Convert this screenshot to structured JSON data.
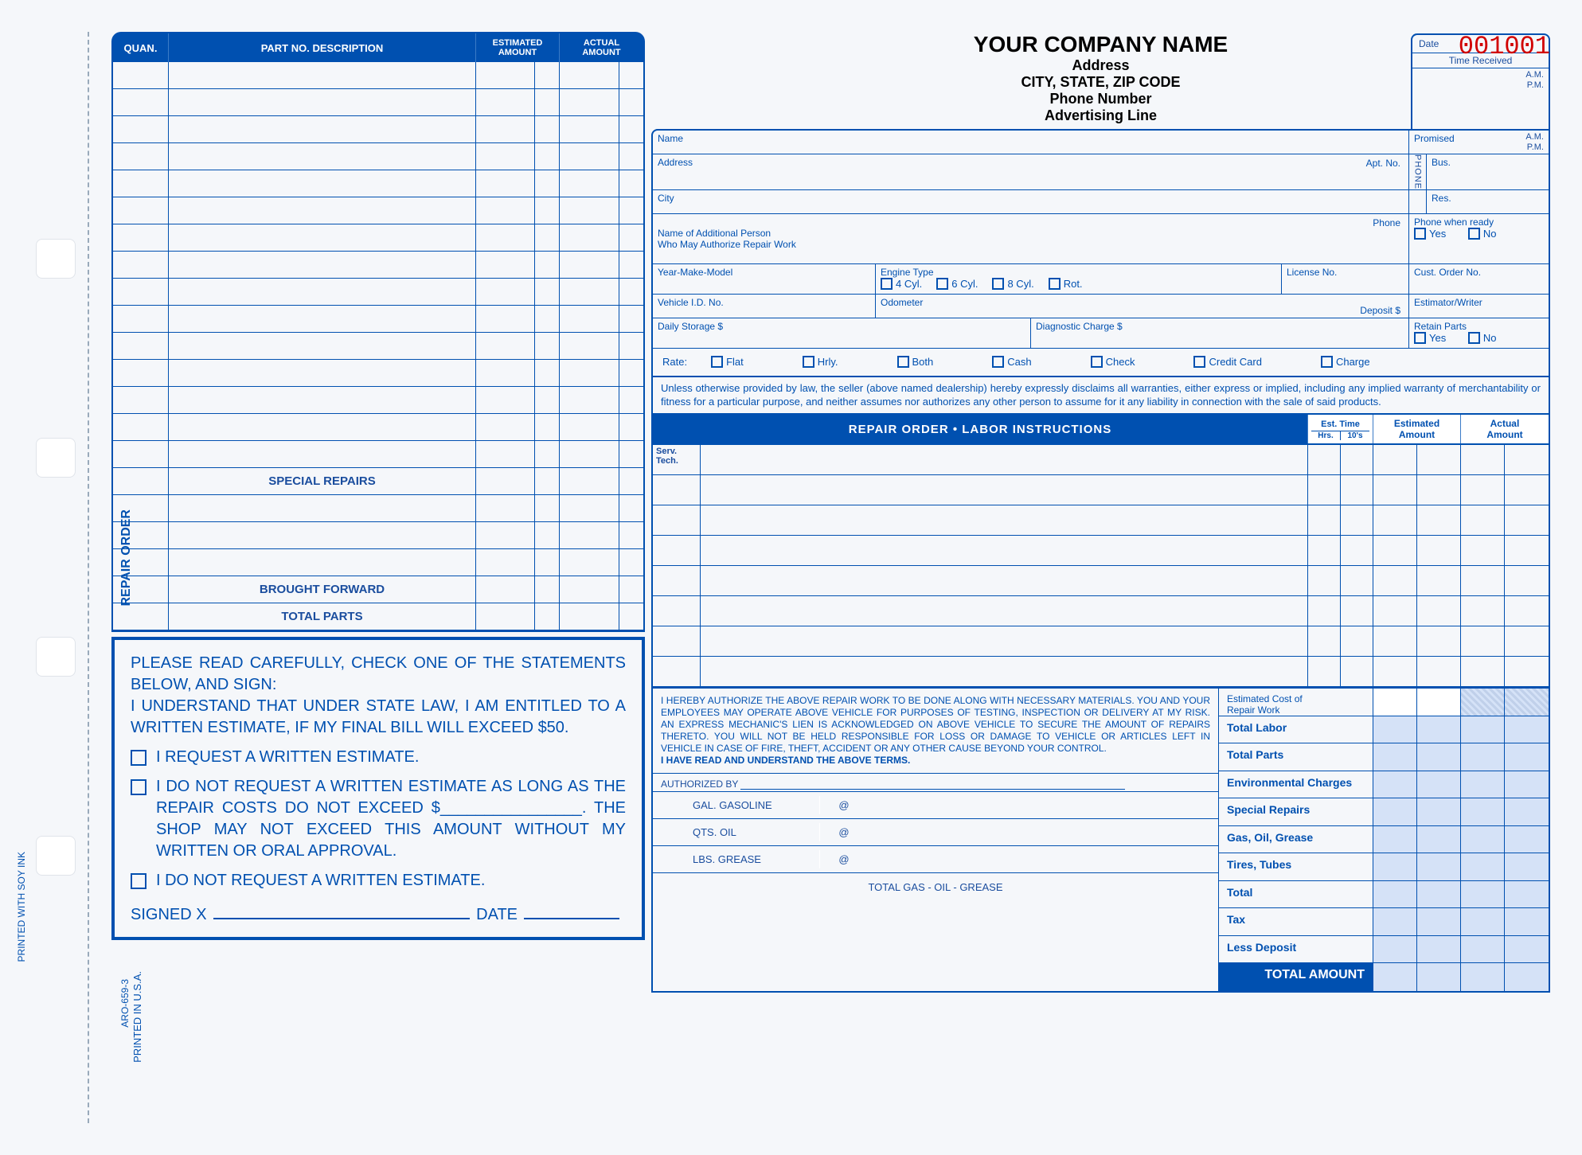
{
  "form_number": "001001",
  "company": {
    "name": "YOUR COMPANY NAME",
    "address": "Address",
    "city_state_zip": "CITY, STATE, ZIP CODE",
    "phone": "Phone Number",
    "advertising": "Advertising Line"
  },
  "colors": {
    "primary": "#0050b0",
    "accent_fill": "#d5e2f7",
    "form_number": "#d10000",
    "background": "#f5f7fa"
  },
  "side_labels": {
    "repair_order": "REPAIR ORDER",
    "soy_ink": "PRINTED WITH SOY INK",
    "form_code": "ARO-659-3",
    "printed_usa": "PRINTED IN U.S.A."
  },
  "parts_table": {
    "headers": {
      "quan": "QUAN.",
      "desc": "PART NO. DESCRIPTION",
      "est": "ESTIMATED\nAMOUNT",
      "act": "ACTUAL\nAMOUNT"
    },
    "blank_rows": 15,
    "special_repairs": "SPECIAL  REPAIRS",
    "blank_rows_after": 3,
    "brought_forward": "BROUGHT FORWARD",
    "total_parts": "TOTAL PARTS"
  },
  "statement": {
    "lead": "PLEASE READ CAREFULLY, CHECK ONE OF THE STATEMENTS BELOW, AND SIGN:",
    "body": "I UNDERSTAND THAT UNDER STATE LAW, I AM ENTITLED TO A WRITTEN ESTIMATE, IF MY FINAL BILL WILL EXCEED $50.",
    "opt1": "I REQUEST A WRITTEN ESTIMATE.",
    "opt2": "I DO NOT REQUEST A WRITTEN ESTIMATE AS LONG AS THE REPAIR COSTS DO NOT EXCEED $________________. THE SHOP MAY NOT EXCEED THIS AMOUNT WITHOUT MY WRITTEN OR ORAL APPROVAL.",
    "opt3": "I DO NOT REQUEST A WRITTEN ESTIMATE.",
    "signed": "SIGNED  X",
    "date": "DATE"
  },
  "customer_info": {
    "date": "Date",
    "time_received": "Time Received",
    "am": "A.M.",
    "pm": "P.M.",
    "name": "Name",
    "promised": "Promised",
    "address": "Address",
    "apt": "Apt. No.",
    "phone_label": "PHONE",
    "bus": "Bus.",
    "res": "Res.",
    "city": "City",
    "additional_person": "Name of Additional Person\nWho May Authorize Repair Work",
    "phone": "Phone",
    "phone_when_ready": "Phone when ready",
    "yes": "Yes",
    "no": "No",
    "year_make_model": "Year-Make-Model",
    "engine_type": "Engine Type",
    "engine_opts": [
      "4 Cyl.",
      "6 Cyl.",
      "8 Cyl.",
      "Rot."
    ],
    "license_no": "License No.",
    "cust_order_no": "Cust. Order No.",
    "vehicle_id": "Vehicle I.D. No.",
    "odometer": "Odometer",
    "deposit": "Deposit $",
    "estimator": "Estimator/Writer",
    "daily_storage": "Daily Storage $",
    "diagnostic_charge": "Diagnostic Charge $",
    "retain_parts": "Retain Parts",
    "rate": "Rate:",
    "rate_opts": [
      "Flat",
      "Hrly.",
      "Both",
      "Cash",
      "Check",
      "Credit Card",
      "Charge"
    ]
  },
  "disclaimer": "Unless otherwise provided by law, the seller (above named dealership) hereby expressly disclaims all warranties, either express or implied, including any implied warranty of merchantability or fitness for a particular purpose, and neither assumes nor authorizes any other person to assume for it any liability in connection with the sale of said products.",
  "labor": {
    "title": "REPAIR ORDER   •   LABOR INSTRUCTIONS",
    "est_time": "Est. Time",
    "hrs": "Hrs.",
    "tens": "10's",
    "est_amount": "Estimated\nAmount",
    "act_amount": "Actual\nAmount",
    "serv_tech": "Serv.\nTech.",
    "rows": 8
  },
  "authorization": {
    "text": "I HEREBY AUTHORIZE THE ABOVE REPAIR WORK TO BE DONE ALONG WITH NECESSARY MATERIALS. YOU AND YOUR EMPLOYEES MAY OPERATE ABOVE VEHICLE FOR PURPOSES OF TESTING, INSPECTION OR DELIVERY AT MY RISK. AN EXPRESS MECHANIC'S LIEN IS ACKNOWLEDGED ON ABOVE VEHICLE TO SECURE THE AMOUNT OF REPAIRS THERETO. YOU WILL NOT BE HELD RESPONSIBLE FOR LOSS OR DAMAGE TO VEHICLE OR ARTICLES LEFT IN VEHICLE IN CASE OF FIRE, THEFT, ACCIDENT OR ANY OTHER CAUSE BEYOND YOUR CONTROL.",
    "bold": "I HAVE READ AND UNDERSTAND THE ABOVE TERMS.",
    "authorized_by": "AUTHORIZED BY",
    "fluids": {
      "gas": "GAL. GASOLINE",
      "oil": "QTS. OIL",
      "grease": "LBS. GREASE",
      "at": "@",
      "total": "TOTAL GAS - OIL - GREASE"
    }
  },
  "totals": {
    "rows": [
      "Estimated Cost of\nRepair Work",
      "Total Labor",
      "Total Parts",
      "Environmental Charges",
      "Special Repairs",
      "Gas, Oil, Grease",
      "Tires, Tubes",
      "Total",
      "Tax",
      "Less Deposit"
    ],
    "final": "TOTAL AMOUNT"
  }
}
